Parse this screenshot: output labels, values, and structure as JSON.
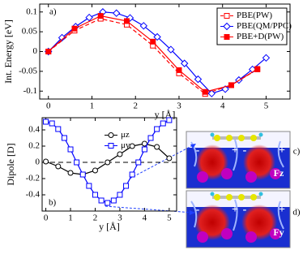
{
  "chart_data": [
    {
      "type": "line",
      "panel_label": "a)",
      "ylabel": "Int. Energy [eV]",
      "xlabel": "y [Å]",
      "xlim": [
        -0.2,
        5.55
      ],
      "ylim": [
        -0.12,
        0.12
      ],
      "xticks": [
        0,
        1,
        2,
        3,
        4,
        5
      ],
      "yticks": [
        -0.1,
        -0.05,
        0,
        0.05,
        0.1
      ],
      "legend": "upper right",
      "series": [
        {
          "name": "PBE(PW)",
          "color": "#ff0000",
          "marker": "square-open",
          "linestyle": "dashed",
          "x": [
            0,
            0.6,
            1.2,
            1.8,
            2.4,
            3.0,
            3.6,
            4.2,
            4.8
          ],
          "values": [
            0,
            0.053,
            0.083,
            0.068,
            0.015,
            -0.055,
            -0.107,
            -0.085,
            -0.045
          ]
        },
        {
          "name": "PBE(QM/PPC)",
          "color": "#0000ff",
          "marker": "diamond-open",
          "linestyle": "solid",
          "x": [
            0,
            0.3125,
            0.625,
            0.9375,
            1.25,
            1.5625,
            1.875,
            2.1875,
            2.5,
            2.8125,
            3.125,
            3.4375,
            3.75,
            4.0625,
            4.375,
            4.6875,
            5.0
          ],
          "values": [
            0,
            0.035,
            0.063,
            0.086,
            0.1,
            0.097,
            0.085,
            0.065,
            0.037,
            0.005,
            -0.03,
            -0.07,
            -0.106,
            -0.095,
            -0.072,
            -0.045,
            -0.016
          ]
        },
        {
          "name": "PBE+D(PW)",
          "color": "#ff0000",
          "marker": "square",
          "linestyle": "solid",
          "x": [
            0,
            0.6,
            1.2,
            1.8,
            2.4,
            3.0,
            3.6,
            4.2,
            4.8
          ],
          "values": [
            0,
            0.058,
            0.09,
            0.077,
            0.025,
            -0.047,
            -0.102,
            -0.085,
            -0.044
          ]
        }
      ]
    },
    {
      "type": "line",
      "panel_label": "b)",
      "ylabel": "Dipole [D]",
      "xlabel": "y [Å]",
      "xlim": [
        -0.15,
        5.3
      ],
      "ylim": [
        -0.6,
        0.55
      ],
      "xticks": [
        0,
        1,
        2,
        3,
        4,
        5
      ],
      "yticks": [
        -0.4,
        -0.2,
        0,
        0.2,
        0.4
      ],
      "legend": "upper center",
      "zero_line": true,
      "series": [
        {
          "name": "μz",
          "color": "#000000",
          "marker": "circle-open",
          "linestyle": "solid",
          "x": [
            0,
            0.5,
            1.0,
            1.5,
            2.0,
            2.5,
            3.0,
            3.5,
            4.0,
            4.5,
            5.0
          ],
          "values": [
            0.01,
            -0.05,
            -0.13,
            -0.15,
            -0.1,
            0,
            0.1,
            0.2,
            0.23,
            0.19,
            0.05
          ]
        },
        {
          "name": "μy",
          "color": "#0000ff",
          "marker": "square-open",
          "linestyle": "solid",
          "x": [
            0,
            0.25,
            0.5,
            0.75,
            1.0,
            1.25,
            1.5,
            1.75,
            2.0,
            2.25,
            2.5,
            2.75,
            3.0,
            3.25,
            3.5,
            3.75,
            4.0,
            4.25,
            4.5,
            4.75,
            5.0
          ],
          "values": [
            0.5,
            0.48,
            0.41,
            0.3,
            0.16,
            0,
            -0.15,
            -0.29,
            -0.4,
            -0.47,
            -0.5,
            -0.47,
            -0.4,
            -0.29,
            -0.15,
            0,
            0.16,
            0.3,
            0.41,
            0.48,
            0.52
          ]
        }
      ]
    }
  ],
  "figures": [
    {
      "label": "c)",
      "signs": [
        "-",
        "+",
        "-",
        "+"
      ],
      "force": "Fz"
    },
    {
      "label": "d)",
      "signs": [
        "-",
        "+",
        "-",
        "+"
      ],
      "force": "Fy"
    }
  ]
}
